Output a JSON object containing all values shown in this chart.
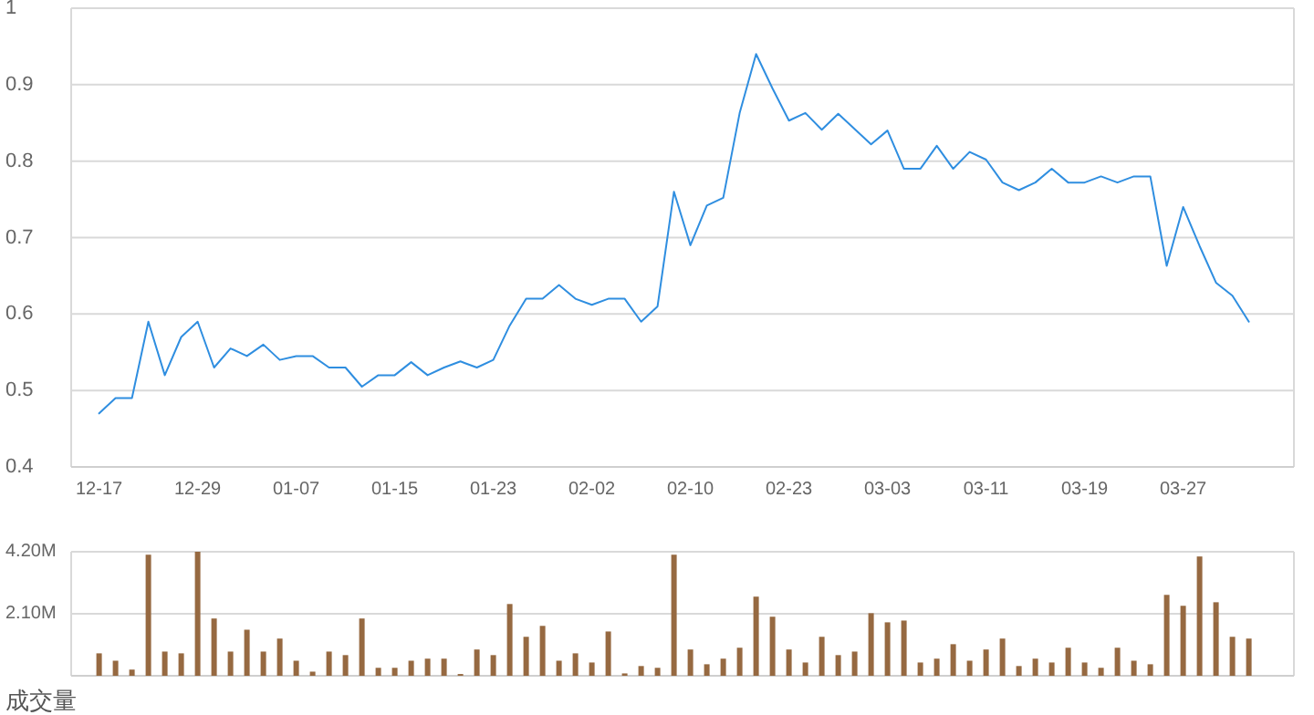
{
  "chart_data": [
    {
      "type": "line",
      "categories": [
        "12-17",
        null,
        null,
        null,
        null,
        null,
        "12-29",
        null,
        null,
        null,
        null,
        null,
        "01-07",
        null,
        null,
        null,
        null,
        null,
        "01-15",
        null,
        null,
        null,
        null,
        null,
        "01-23",
        null,
        null,
        null,
        null,
        null,
        "02-02",
        null,
        null,
        null,
        null,
        null,
        "02-10",
        null,
        null,
        null,
        null,
        null,
        "02-23",
        null,
        null,
        null,
        null,
        null,
        "03-03",
        null,
        null,
        null,
        null,
        null,
        "03-11",
        null,
        null,
        null,
        null,
        null,
        "03-19",
        null,
        null,
        null,
        null,
        null,
        "03-27",
        null,
        null,
        null,
        null
      ],
      "values": [
        0.47,
        0.49,
        0.49,
        0.59,
        0.52,
        0.57,
        0.59,
        0.53,
        0.555,
        0.545,
        0.56,
        0.54,
        0.545,
        0.545,
        0.53,
        0.53,
        0.505,
        0.52,
        0.52,
        0.537,
        0.52,
        0.53,
        0.538,
        0.53,
        0.54,
        0.585,
        0.62,
        0.62,
        0.638,
        0.62,
        0.612,
        0.62,
        0.62,
        0.59,
        0.61,
        0.76,
        0.69,
        0.742,
        0.752,
        0.863,
        0.94,
        0.895,
        0.853,
        0.863,
        0.841,
        0.862,
        0.842,
        0.822,
        0.84,
        0.79,
        0.79,
        0.82,
        0.79,
        0.812,
        0.802,
        0.772,
        0.762,
        0.772,
        0.79,
        0.772,
        0.772,
        0.78,
        0.772,
        0.78,
        0.78,
        0.663,
        0.74,
        0.689,
        0.641,
        0.624,
        0.59
      ],
      "color": "#2f8ee0",
      "ylim": [
        0.4,
        1
      ],
      "yticks": [
        0.4,
        0.5,
        0.6,
        0.7,
        0.8,
        0.9,
        1
      ],
      "grid": "y"
    },
    {
      "type": "bar",
      "categories": [
        null,
        null,
        null,
        null,
        null,
        null,
        null,
        null,
        null,
        null,
        null,
        null,
        null,
        null,
        null,
        null,
        null,
        null,
        null,
        null,
        null,
        null,
        null,
        null,
        null,
        null,
        null,
        null,
        null,
        null,
        null,
        null,
        null,
        null,
        null,
        null,
        null,
        null,
        null,
        null,
        null,
        null,
        null,
        null,
        null,
        null,
        null,
        null,
        null,
        null,
        null,
        null,
        null,
        null,
        null,
        null,
        null,
        null,
        null,
        null,
        null,
        null,
        null,
        null,
        null,
        null,
        null,
        null,
        null,
        null,
        null
      ],
      "values": [
        0.76,
        0.51,
        0.21,
        4.1,
        0.82,
        0.76,
        4.2,
        1.94,
        0.82,
        1.56,
        0.82,
        1.26,
        0.51,
        0.14,
        0.82,
        0.7,
        1.94,
        0.27,
        0.27,
        0.51,
        0.58,
        0.58,
        0.06,
        0.89,
        0.7,
        2.43,
        1.32,
        1.69,
        0.51,
        0.76,
        0.45,
        1.5,
        0.08,
        0.33,
        0.27,
        4.1,
        0.89,
        0.39,
        0.58,
        0.95,
        2.68,
        2.0,
        0.89,
        0.45,
        1.32,
        0.7,
        0.82,
        2.12,
        1.81,
        1.87,
        0.45,
        0.58,
        1.07,
        0.51,
        0.89,
        1.26,
        0.33,
        0.58,
        0.45,
        0.95,
        0.45,
        0.27,
        0.95,
        0.51,
        0.39,
        2.74,
        2.37,
        4.04,
        2.49,
        1.32,
        1.26
      ],
      "color": "#966941",
      "ylim": [
        0,
        4.2
      ],
      "yticks": [
        {
          "value": 0,
          "label": null
        },
        {
          "value": 2.1,
          "label": "2.10M"
        },
        {
          "value": 4.2,
          "label": "4.20M"
        }
      ],
      "grid": "y",
      "xlabel": "成交量"
    }
  ]
}
